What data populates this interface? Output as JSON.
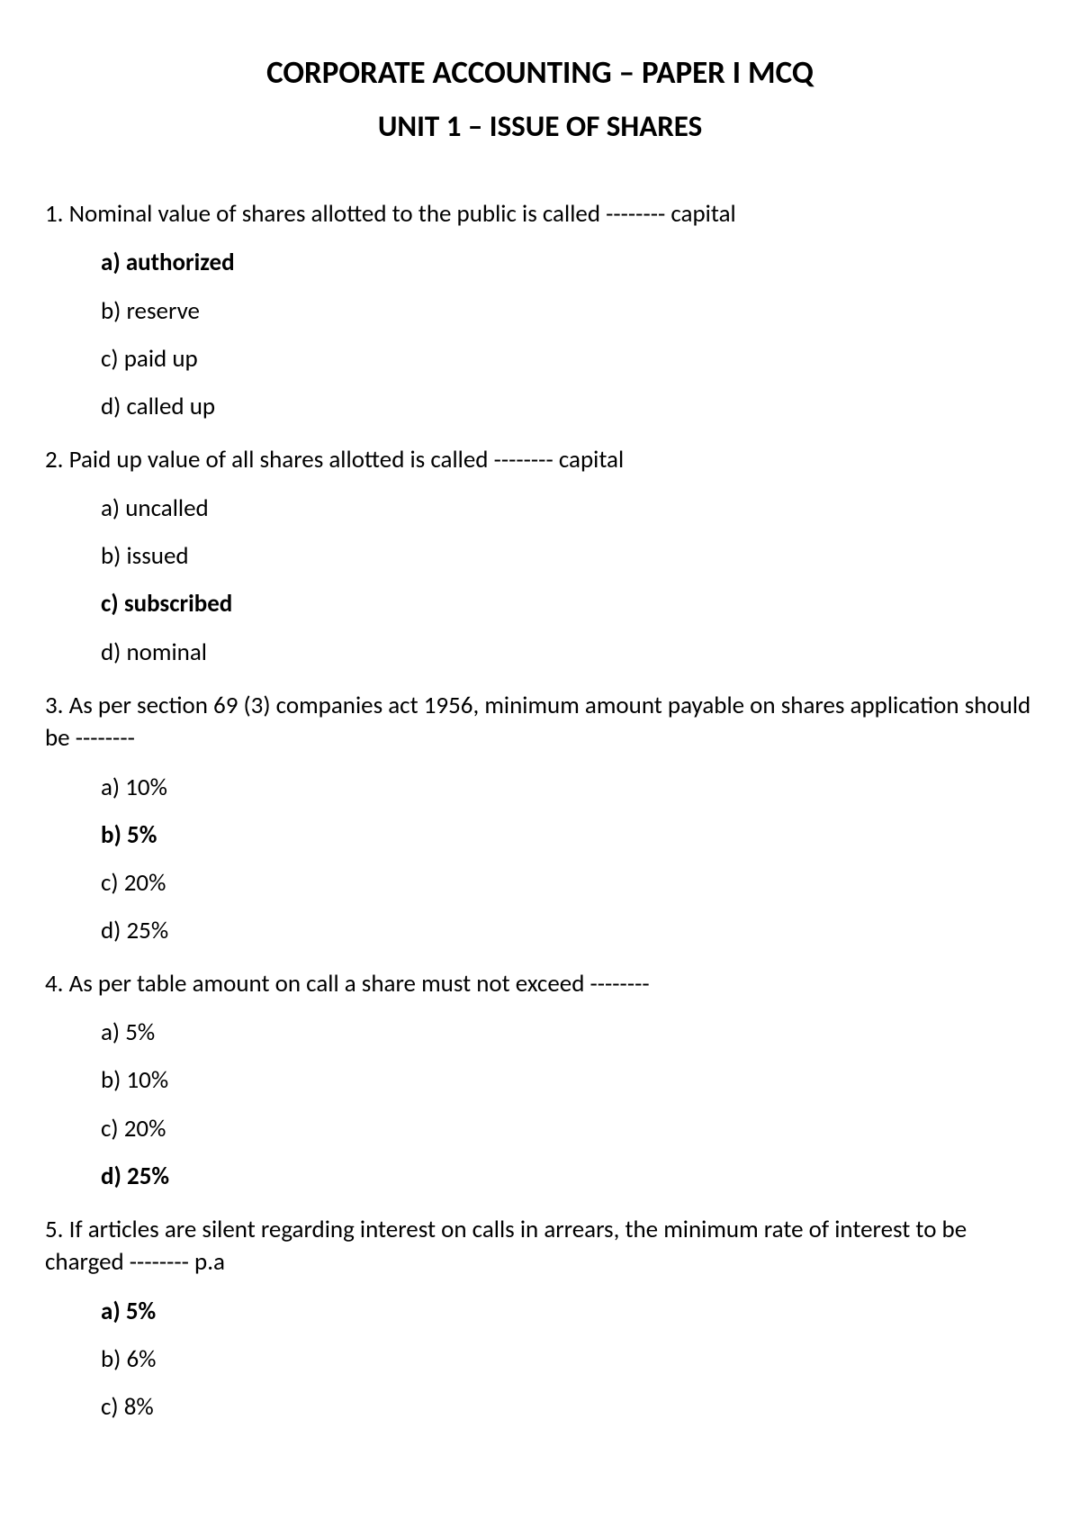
{
  "header": {
    "title_main": "CORPORATE ACCOUNTING – PAPER I MCQ",
    "title_sub": "UNIT 1 – ISSUE OF SHARES"
  },
  "questions": [
    {
      "number": "1.",
      "text": "Nominal value of shares allotted to the public is called -------- capital",
      "options": [
        {
          "label": "a) authorized",
          "bold": true
        },
        {
          "label": "b) reserve",
          "bold": false
        },
        {
          "label": "c) paid up",
          "bold": false
        },
        {
          "label": "d) called up",
          "bold": false
        }
      ]
    },
    {
      "number": "2.",
      "text": "Paid up value of all shares allotted is called -------- capital",
      "options": [
        {
          "label": "a) uncalled",
          "bold": false
        },
        {
          "label": "b) issued",
          "bold": false
        },
        {
          "label": "c) subscribed",
          "bold": true
        },
        {
          "label": "d) nominal",
          "bold": false
        }
      ]
    },
    {
      "number": "3.",
      "text": "As per section 69 (3) companies act 1956, minimum amount payable on shares application should be --------",
      "options": [
        {
          "label": "a) 10%",
          "bold": false
        },
        {
          "label": "b) 5%",
          "bold": true
        },
        {
          "label": "c) 20%",
          "bold": false
        },
        {
          "label": "d) 25%",
          "bold": false
        }
      ]
    },
    {
      "number": "4.",
      "text": "As per table amount on call a share must not exceed --------",
      "options": [
        {
          "label": "a) 5%",
          "bold": false
        },
        {
          "label": "b) 10%",
          "bold": false
        },
        {
          "label": "c) 20%",
          "bold": false
        },
        {
          "label": "d) 25%",
          "bold": true
        }
      ]
    },
    {
      "number": "5.",
      "text": "  If articles are silent regarding interest on calls in arrears, the minimum rate of interest to be charged -------- p.a",
      "options": [
        {
          "label": "a) 5%",
          "bold": true
        },
        {
          "label": "b) 6%",
          "bold": false
        },
        {
          "label": "c) 8%",
          "bold": false
        }
      ]
    }
  ]
}
